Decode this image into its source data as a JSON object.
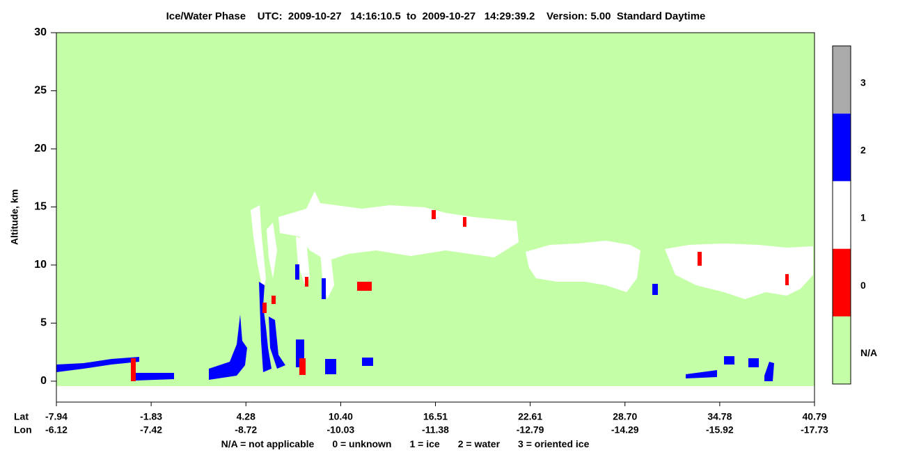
{
  "chart_data": {
    "type": "curtain",
    "title": "Ice/Water Phase    UTC:  2009-10-27   14:16:10.5  to  2009-10-27   14:29:39.2    Version: 5.00  Standard Daytime",
    "y_label": "Altitude, km",
    "ylim": [
      -1.8,
      30
    ],
    "yticks": [
      0,
      5,
      10,
      15,
      20,
      25,
      30
    ],
    "x_row_labels": [
      "Lat",
      "Lon"
    ],
    "x_ticks": [
      {
        "lat": "-7.94",
        "lon": "-6.12"
      },
      {
        "lat": "-1.83",
        "lon": "-7.42"
      },
      {
        "lat": "4.28",
        "lon": "-8.72"
      },
      {
        "lat": "10.40",
        "lon": "-10.03"
      },
      {
        "lat": "16.51",
        "lon": "-11.38"
      },
      {
        "lat": "22.61",
        "lon": "-12.79"
      },
      {
        "lat": "28.70",
        "lon": "-14.29"
      },
      {
        "lat": "34.78",
        "lon": "-15.92"
      },
      {
        "lat": "40.79",
        "lon": "-17.73"
      }
    ],
    "colorbar": [
      {
        "label": "N/A",
        "color": "#c4ffa8"
      },
      {
        "label": "0",
        "color": "#ff0000"
      },
      {
        "label": "1",
        "color": "#ffffff"
      },
      {
        "label": "2",
        "color": "#0000ff"
      },
      {
        "label": "3",
        "color": "#aaaaaa"
      }
    ],
    "legend_text": [
      "N/A = not applicable",
      "0 = unknown",
      "1 = ice",
      "2 = water",
      "3 = oriented ice"
    ]
  }
}
